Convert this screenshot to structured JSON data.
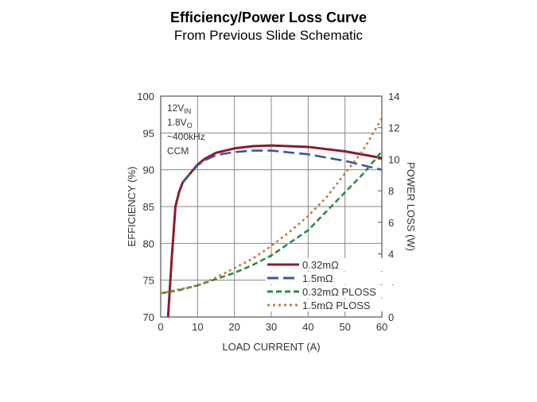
{
  "header": {
    "title": "Efficiency/Power Loss Curve",
    "subtitle": "From Previous Slide Schematic"
  },
  "chart_data": {
    "type": "line",
    "xlabel": "LOAD CURRENT (A)",
    "ylabel": "EFFICIENCY (%)",
    "y2label": "POWER LOSS (W)",
    "xlim": [
      0,
      60
    ],
    "ylim": [
      70,
      100
    ],
    "y2lim": [
      0,
      14
    ],
    "xticks": [
      0,
      10,
      20,
      30,
      40,
      50,
      60
    ],
    "yticks": [
      70,
      75,
      80,
      85,
      90,
      95,
      100
    ],
    "y2ticks": [
      0,
      2,
      4,
      6,
      8,
      10,
      12,
      14
    ],
    "grid": true,
    "annotation": [
      "12V",
      "IN",
      "1.8V",
      "O",
      "~400kHz",
      "CCM"
    ],
    "legend_position": "bottom-right",
    "series": [
      {
        "name": "0.32mΩ",
        "axis": "left",
        "color": "#8b1a2e",
        "dash": "solid",
        "x": [
          2,
          3,
          4,
          5,
          6,
          8,
          10,
          12,
          15,
          20,
          25,
          30,
          40,
          50,
          60
        ],
        "y": [
          70,
          78,
          85,
          87,
          88.3,
          89.5,
          90.7,
          91.5,
          92.3,
          92.9,
          93.2,
          93.3,
          93.1,
          92.5,
          91.6
        ]
      },
      {
        "name": "1.5mΩ",
        "axis": "left",
        "color": "#3a56a0",
        "dash": "long",
        "x": [
          6,
          8,
          10,
          12,
          15,
          20,
          25,
          30,
          40,
          50,
          60
        ],
        "y": [
          88.3,
          89.5,
          90.6,
          91.3,
          92.0,
          92.4,
          92.6,
          92.6,
          92.1,
          91.2,
          90.0
        ]
      },
      {
        "name": "0.32mΩ PLOSS",
        "axis": "right",
        "color": "#2e8b45",
        "dash": "medium",
        "x": [
          0,
          5,
          10,
          15,
          20,
          25,
          30,
          35,
          40,
          45,
          50,
          55,
          60
        ],
        "y": [
          1.5,
          1.7,
          2.0,
          2.4,
          2.8,
          3.3,
          3.9,
          4.7,
          5.5,
          6.7,
          7.9,
          9.1,
          10.5
        ]
      },
      {
        "name": "1.5mΩ PLOSS",
        "axis": "right",
        "color": "#c57a3a",
        "dash": "dotted",
        "x": [
          0,
          10,
          15,
          20,
          25,
          30,
          35,
          40,
          45,
          50,
          55,
          60
        ],
        "y": [
          1.5,
          2.0,
          2.5,
          3.1,
          3.7,
          4.5,
          5.4,
          6.4,
          7.6,
          9.1,
          10.6,
          12.6
        ]
      }
    ]
  }
}
